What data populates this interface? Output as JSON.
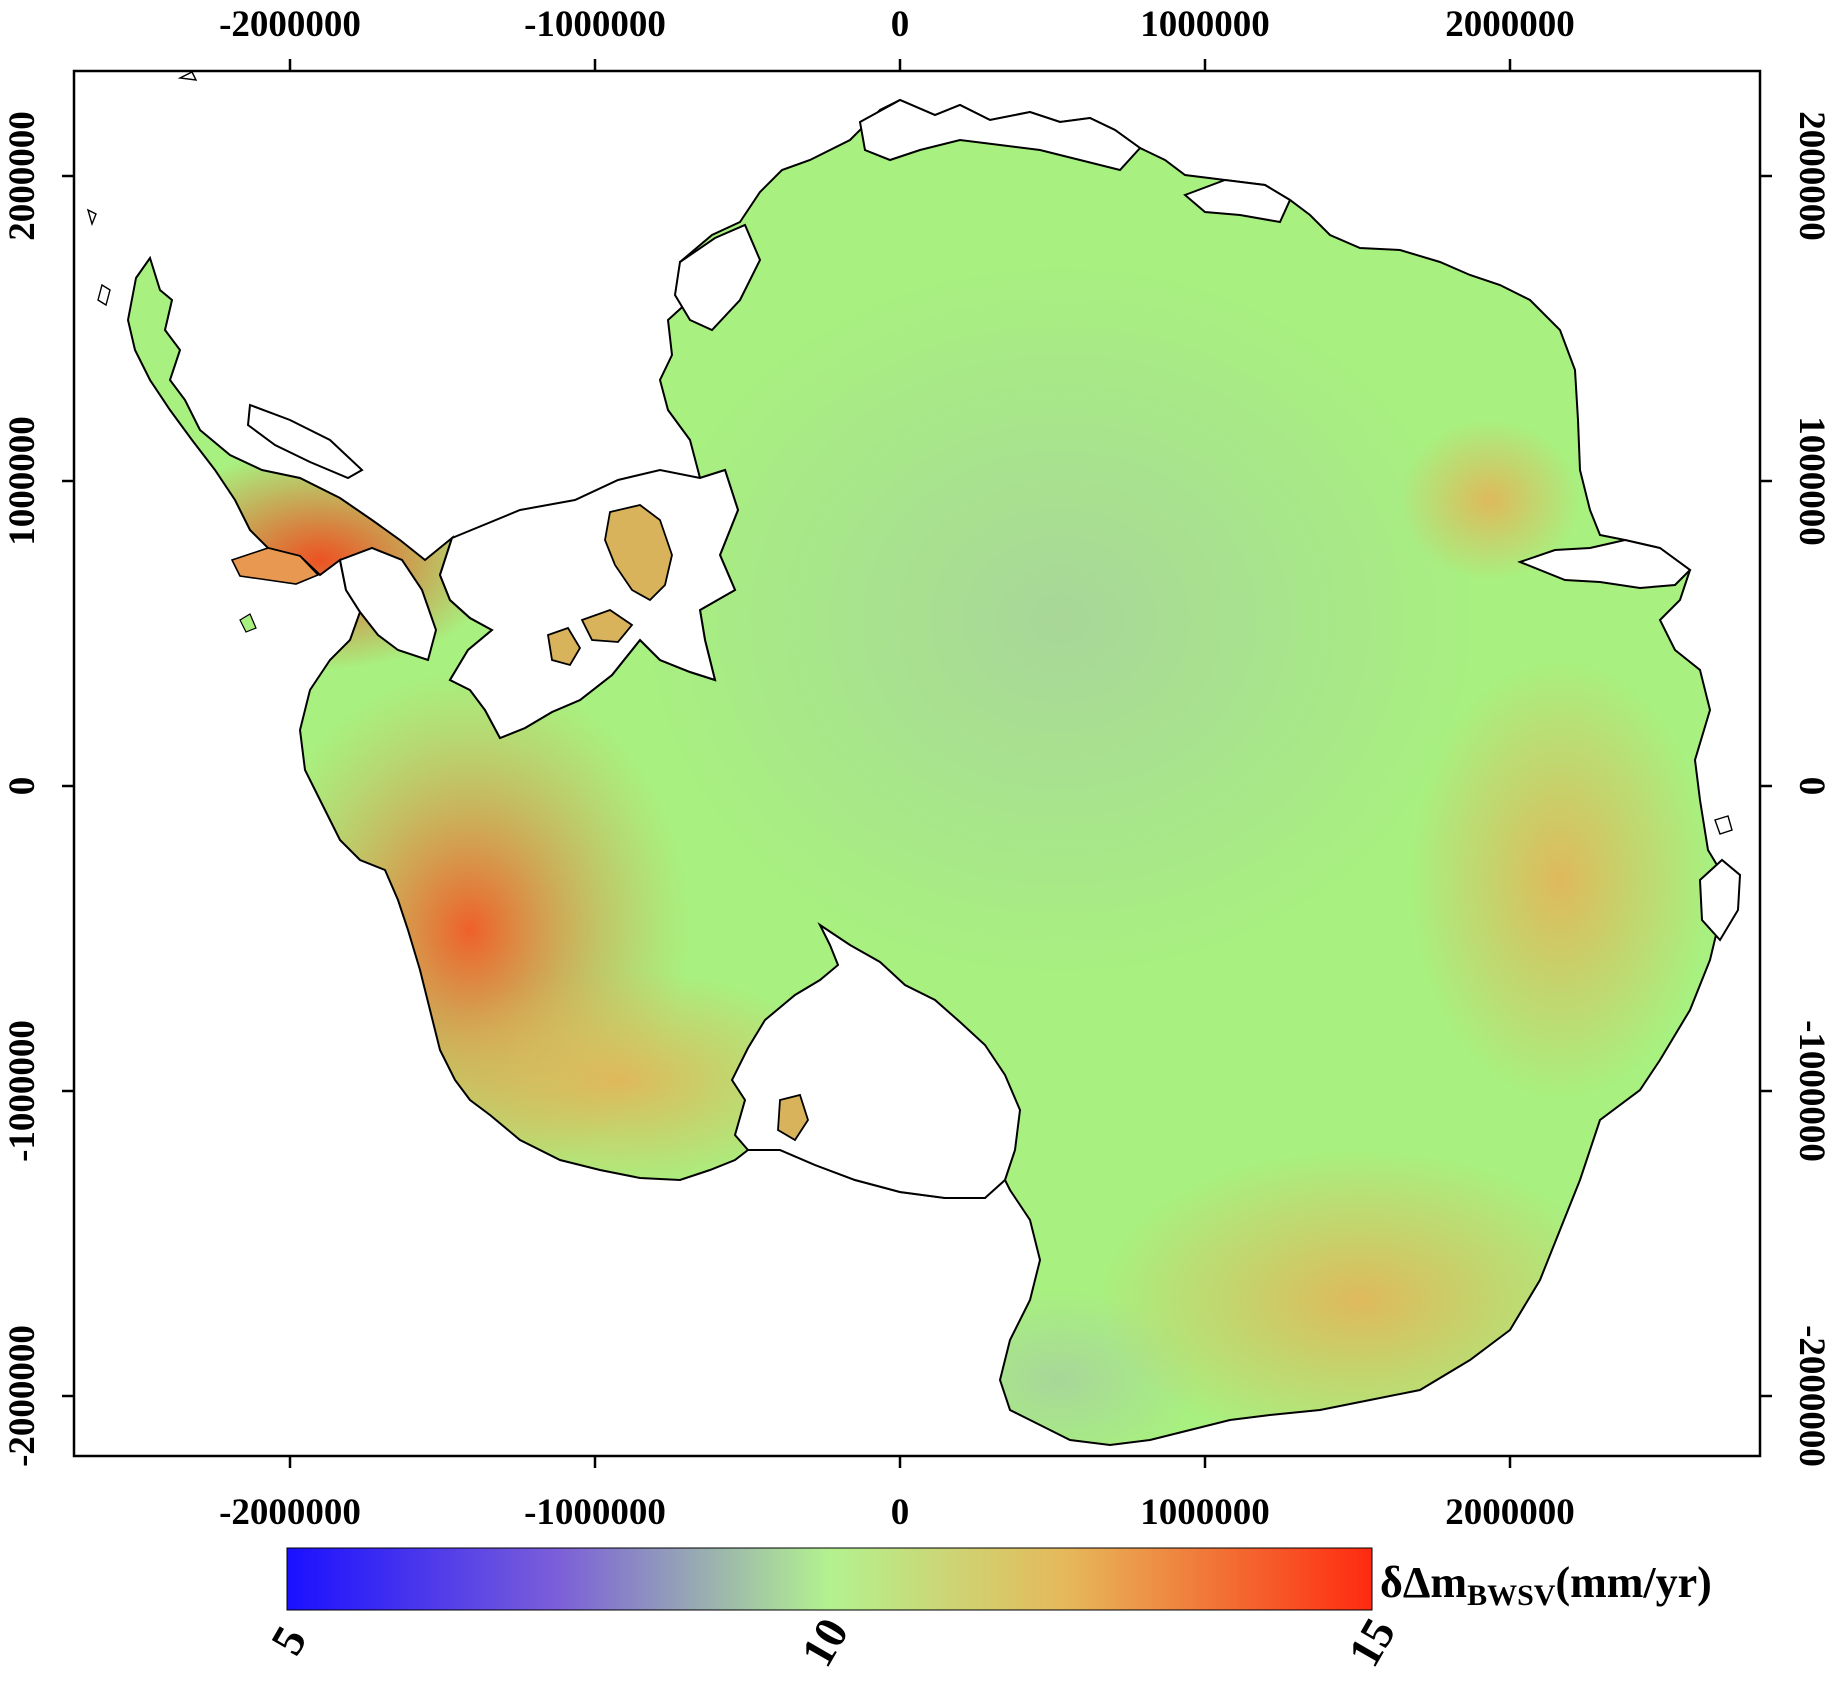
{
  "map": {
    "x_ticks": [
      "-2000000",
      "-1000000",
      "0",
      "1000000",
      "2000000"
    ],
    "y_ticks": [
      "2000000",
      "1000000",
      "0",
      "-1000000",
      "-2000000"
    ],
    "x_tick_values": [
      -2000000,
      -1000000,
      0,
      1000000,
      2000000
    ],
    "y_tick_values": [
      2000000,
      1000000,
      0,
      -1000000,
      -2000000
    ],
    "xlim": [
      -2700000,
      2800000
    ],
    "ylim": [
      -2200000,
      2350000
    ],
    "region": "Antarctica"
  },
  "colorbar": {
    "title_main": "δΔm",
    "title_sub": "BWSV",
    "title_unit": "(mm/yr)",
    "labels": [
      "5",
      "10",
      "15"
    ],
    "range": [
      5,
      15
    ],
    "colors": {
      "low": "#1a10ff",
      "mid_low": "#7b5fd9",
      "mid": "#b3f28f",
      "mid_high": "#e6b85a",
      "high": "#ff2a10"
    }
  },
  "colors": {
    "ice_base": "#a8f080",
    "interior_low": "#a8d89a",
    "warm": "#e0b85c",
    "hot": "#f05a2a",
    "outline": "#000000"
  }
}
